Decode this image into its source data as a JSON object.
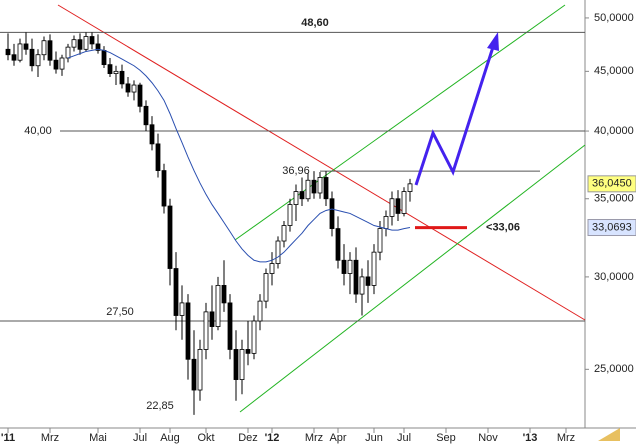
{
  "chart_data": {
    "type": "candlestick",
    "log_scale": true,
    "categories": [
      "'11",
      null,
      null,
      null,
      null,
      null,
      null,
      "Mrz",
      null,
      null,
      null,
      null,
      null,
      null,
      null,
      "Mai",
      null,
      null,
      null,
      null,
      null,
      null,
      "Jul",
      null,
      null,
      null,
      null,
      "Aug",
      null,
      null,
      null,
      null,
      null,
      "Okt",
      null,
      null,
      null,
      null,
      null,
      null,
      "Dez",
      null,
      null,
      null,
      "'12",
      null,
      null,
      null,
      null,
      null,
      null,
      "Mrz",
      null,
      null,
      null,
      "Apr",
      null,
      null,
      null,
      null,
      null,
      "Jun",
      null,
      null,
      null,
      null,
      "Jul",
      null,
      null,
      null,
      null,
      null,
      null,
      "Sep",
      null,
      null,
      null,
      null,
      null,
      null,
      "Nov",
      null,
      null,
      null,
      null,
      null,
      null,
      "'13",
      null,
      null,
      null,
      null,
      null,
      "Mrz",
      null,
      null,
      null
    ],
    "ohlc": [
      [
        47,
        48.5,
        46,
        46.5
      ],
      [
        46.5,
        47.5,
        45.5,
        46
      ],
      [
        46,
        48,
        45.8,
        47.5
      ],
      [
        47.5,
        48.6,
        46.5,
        47
      ],
      [
        47,
        48,
        45,
        45.5
      ],
      [
        45.5,
        47,
        44.5,
        46.5
      ],
      [
        46.5,
        48.2,
        46,
        47.8
      ],
      [
        47.8,
        48.4,
        45.5,
        46
      ],
      [
        46,
        46.8,
        44.8,
        45.2
      ],
      [
        45.2,
        46.5,
        44.6,
        46.2
      ],
      [
        46.2,
        47.5,
        45.8,
        47.2
      ],
      [
        47.2,
        48.3,
        46.8,
        47.9
      ],
      [
        47.9,
        48.5,
        46.5,
        47
      ],
      [
        47,
        48.6,
        46.8,
        48.2
      ],
      [
        48.2,
        48.6,
        47,
        47.5
      ],
      [
        47.5,
        48.4,
        46.6,
        46.9
      ],
      [
        46.9,
        47.3,
        45.3,
        45.6
      ],
      [
        45.6,
        46.2,
        44.5,
        44.8
      ],
      [
        44.8,
        45.5,
        43.8,
        45
      ],
      [
        45,
        45.6,
        43.5,
        43.9
      ],
      [
        43.9,
        44.5,
        42.8,
        43.2
      ],
      [
        43.2,
        44.2,
        42.5,
        43.8
      ],
      [
        43.8,
        44,
        41.5,
        42
      ],
      [
        42,
        42.5,
        40,
        40.5
      ],
      [
        40.5,
        41.2,
        38.5,
        39
      ],
      [
        39,
        39.8,
        36.5,
        37
      ],
      [
        37,
        37.5,
        34,
        34.5
      ],
      [
        34.5,
        35,
        29.5,
        30.5
      ],
      [
        30.5,
        31.5,
        27,
        27.8
      ],
      [
        27.8,
        29.5,
        26.5,
        28.5
      ],
      [
        28.5,
        29,
        24.5,
        25.5
      ],
      [
        25.5,
        27,
        22.85,
        24
      ],
      [
        24,
        26.5,
        23.5,
        26
      ],
      [
        26,
        28.5,
        25.5,
        28
      ],
      [
        28,
        29.5,
        26.5,
        27.2
      ],
      [
        27.2,
        30,
        27,
        29.5
      ],
      [
        29.5,
        31,
        28,
        28.5
      ],
      [
        28.5,
        29,
        25.5,
        26
      ],
      [
        26,
        27,
        23.5,
        24.5
      ],
      [
        24.5,
        26.5,
        23.8,
        26
      ],
      [
        26,
        27.5,
        25.2,
        25.8
      ],
      [
        25.8,
        27.8,
        25.5,
        27.5
      ],
      [
        27.5,
        29,
        27,
        28.6
      ],
      [
        28.6,
        30.5,
        28.2,
        30.2
      ],
      [
        30.2,
        31.5,
        29.5,
        30.8
      ],
      [
        30.8,
        32.5,
        30.5,
        32.2
      ],
      [
        32.2,
        33.5,
        31.8,
        33.2
      ],
      [
        33.2,
        35,
        32.8,
        34.6
      ],
      [
        34.6,
        36,
        33.5,
        35.5
      ],
      [
        35.5,
        36.5,
        34.5,
        35
      ],
      [
        35,
        36.8,
        34.8,
        36.3
      ],
      [
        36.3,
        36.96,
        35,
        35.4
      ],
      [
        35.4,
        36.9,
        35,
        36.5
      ],
      [
        36.5,
        36.96,
        34.5,
        35
      ],
      [
        35,
        35.5,
        32.5,
        33
      ],
      [
        33,
        33.8,
        30.5,
        31
      ],
      [
        31,
        32,
        29.5,
        30.2
      ],
      [
        30.2,
        31.5,
        29,
        31
      ],
      [
        31,
        31.8,
        28.5,
        29
      ],
      [
        29,
        30.5,
        27.8,
        30
      ],
      [
        30,
        31,
        28.5,
        29.5
      ],
      [
        29.5,
        32,
        29,
        31.5
      ],
      [
        31.5,
        33.5,
        31,
        33
      ],
      [
        33,
        34.2,
        32.5,
        33.8
      ],
      [
        33.8,
        35.5,
        33.2,
        35
      ],
      [
        35,
        35.6,
        33.5,
        34
      ],
      [
        34,
        35.8,
        33.8,
        35.5
      ],
      [
        35.5,
        36.4,
        34.8,
        36.045
      ],
      null,
      null,
      null,
      null,
      null,
      null,
      null,
      null,
      null,
      null,
      null,
      null,
      null,
      null,
      null,
      null,
      null,
      null,
      null,
      null,
      null,
      null,
      null,
      null,
      null,
      null,
      null,
      null,
      null
    ],
    "moving_average": {
      "color": "#2a4fb0",
      "values": [
        null,
        null,
        null,
        null,
        null,
        null,
        null,
        null,
        null,
        null,
        46.2,
        46.4,
        46.6,
        46.8,
        46.9,
        47,
        46.9,
        46.7,
        46.4,
        46.1,
        45.8,
        45.5,
        45.1,
        44.6,
        44,
        43.3,
        42.5,
        41.4,
        40.2,
        39.1,
        38,
        37,
        36.1,
        35.3,
        34.6,
        34,
        33.4,
        32.8,
        32.2,
        31.7,
        31.3,
        31,
        30.9,
        30.9,
        31,
        31.2,
        31.5,
        31.9,
        32.3,
        32.7,
        33.2,
        33.6,
        34,
        34.2,
        34.3,
        34.2,
        34.1,
        34,
        33.8,
        33.6,
        33.4,
        33.2,
        33.1,
        33,
        32.9,
        32.9,
        33,
        33.0693,
        null,
        null,
        null,
        null,
        null,
        null,
        null,
        null,
        null,
        null,
        null,
        null,
        null,
        null,
        null,
        null,
        null,
        null,
        null,
        null,
        null,
        null,
        null,
        null,
        null,
        null,
        null,
        null,
        null
      ]
    },
    "last_price": {
      "value": 36.045,
      "label": "36,0450"
    },
    "last_average": {
      "value": 33.0693,
      "label": "33,0693"
    },
    "levels": [
      {
        "value": 48.6,
        "label": "48,60",
        "color": "#3a5bbf"
      },
      {
        "value": 40,
        "label": "40,00",
        "color": "#808080"
      },
      {
        "value": 36.96,
        "label": "36,96",
        "color": "#808080"
      },
      {
        "value": 27.5,
        "label": "27,50",
        "color": "#808080"
      },
      {
        "value": 22.85,
        "label": "22,85",
        "color": "#808080"
      },
      {
        "value": 33.06,
        "label": "<33,06",
        "color": "#e01818"
      }
    ],
    "ylim": [
      22.4,
      51.8
    ],
    "yticks": [
      {
        "value": 25,
        "label": "25,0000"
      },
      {
        "value": 30,
        "label": "30,0000"
      },
      {
        "value": 35,
        "label": "35,0000"
      },
      {
        "value": 40,
        "label": "40,0000"
      },
      {
        "value": 45,
        "label": "45,0000"
      },
      {
        "value": 50,
        "label": "50,0000"
      }
    ]
  }
}
